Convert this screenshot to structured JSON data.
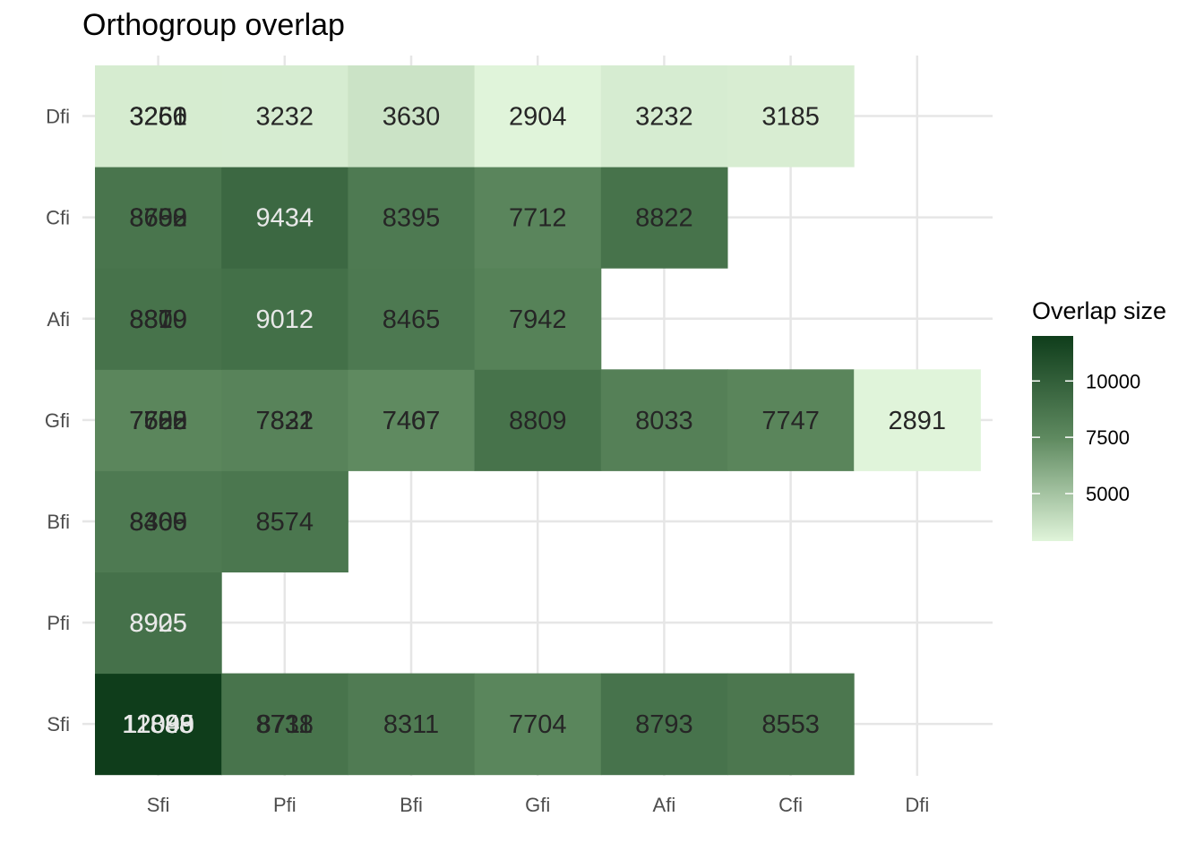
{
  "chart_data": {
    "type": "heatmap",
    "title": "Orthogroup overlap",
    "xlabel": "",
    "ylabel": "",
    "x_categories": [
      "Sfi",
      "Pfi",
      "Bfi",
      "Gfi",
      "Afi",
      "Cfi",
      "Dfi"
    ],
    "y_categories": [
      "Sfi",
      "Pfi",
      "Bfi",
      "Gfi",
      "Afi",
      "Cfi",
      "Dfi"
    ],
    "cells": [
      {
        "x": "Sfi",
        "y": "Sfi",
        "value": 12000
      },
      {
        "x": "Pfi",
        "y": "Sfi",
        "value": 8738
      },
      {
        "x": "Bfi",
        "y": "Sfi",
        "value": 8311
      },
      {
        "x": "Gfi",
        "y": "Sfi",
        "value": 7704
      },
      {
        "x": "Afi",
        "y": "Sfi",
        "value": 8793
      },
      {
        "x": "Cfi",
        "y": "Sfi",
        "value": 8553
      },
      {
        "x": "Sfi",
        "y": "Pfi",
        "value": 8925
      },
      {
        "x": "Sfi",
        "y": "Bfi",
        "value": 8400
      },
      {
        "x": "Pfi",
        "y": "Bfi",
        "value": 8574
      },
      {
        "x": "Sfi",
        "y": "Gfi",
        "value": 7700
      },
      {
        "x": "Pfi",
        "y": "Gfi",
        "value": 7832
      },
      {
        "x": "Bfi",
        "y": "Gfi",
        "value": 7467
      },
      {
        "x": "Gfi",
        "y": "Gfi",
        "value": 8809
      },
      {
        "x": "Afi",
        "y": "Gfi",
        "value": 8033
      },
      {
        "x": "Cfi",
        "y": "Gfi",
        "value": 7747
      },
      {
        "x": "Dfi",
        "y": "Gfi",
        "value": 2891
      },
      {
        "x": "Sfi",
        "y": "Afi",
        "value": 8800
      },
      {
        "x": "Pfi",
        "y": "Afi",
        "value": 9012
      },
      {
        "x": "Bfi",
        "y": "Afi",
        "value": 8465
      },
      {
        "x": "Gfi",
        "y": "Afi",
        "value": 7942
      },
      {
        "x": "Sfi",
        "y": "Cfi",
        "value": 8700
      },
      {
        "x": "Pfi",
        "y": "Cfi",
        "value": 9434
      },
      {
        "x": "Bfi",
        "y": "Cfi",
        "value": 8395
      },
      {
        "x": "Gfi",
        "y": "Cfi",
        "value": 7712
      },
      {
        "x": "Afi",
        "y": "Cfi",
        "value": 8822
      },
      {
        "x": "Sfi",
        "y": "Dfi",
        "value": 3250
      },
      {
        "x": "Pfi",
        "y": "Dfi",
        "value": 3232
      },
      {
        "x": "Bfi",
        "y": "Dfi",
        "value": 3630
      },
      {
        "x": "Gfi",
        "y": "Dfi",
        "value": 2904
      },
      {
        "x": "Afi",
        "y": "Dfi",
        "value": 3232
      },
      {
        "x": "Cfi",
        "y": "Dfi",
        "value": 3185
      }
    ],
    "overlay_labels": [
      {
        "x": "Sfi",
        "y": "Sfi",
        "texts": [
          "12000",
          "11888",
          "12045",
          "12099"
        ]
      },
      {
        "x": "Pfi",
        "y": "Sfi",
        "texts": [
          "8738",
          "8711"
        ]
      },
      {
        "x": "Sfi",
        "y": "Bfi",
        "texts": [
          "8400",
          "8365",
          "8309"
        ]
      },
      {
        "x": "Sfi",
        "y": "Gfi",
        "texts": [
          "7700",
          "7622",
          "7655",
          "7588"
        ]
      },
      {
        "x": "Pfi",
        "y": "Gfi",
        "texts": [
          "7832",
          "7821"
        ]
      },
      {
        "x": "Bfi",
        "y": "Gfi",
        "texts": [
          "7467",
          "7407"
        ]
      },
      {
        "x": "Sfi",
        "y": "Afi",
        "texts": [
          "8800",
          "8879",
          "8819"
        ]
      },
      {
        "x": "Sfi",
        "y": "Cfi",
        "texts": [
          "8700",
          "8692",
          "8658"
        ]
      },
      {
        "x": "Sfi",
        "y": "Pfi",
        "texts": [
          "8925",
          "8905"
        ]
      },
      {
        "x": "Sfi",
        "y": "Dfi",
        "texts": [
          "3250",
          "3261",
          "3266"
        ]
      }
    ],
    "legend": {
      "title": "Overlap size",
      "breaks": [
        5000,
        7500,
        10000
      ],
      "range": [
        2891,
        12000
      ],
      "low_color": "#e0f4da",
      "mid_color": "#5f8a60",
      "high_color": "#0f3d1b",
      "placement": "right"
    },
    "grid": true,
    "label_color_dark": "#262626",
    "label_color_light": "#e8e8e8",
    "light_label_threshold": 8900
  }
}
